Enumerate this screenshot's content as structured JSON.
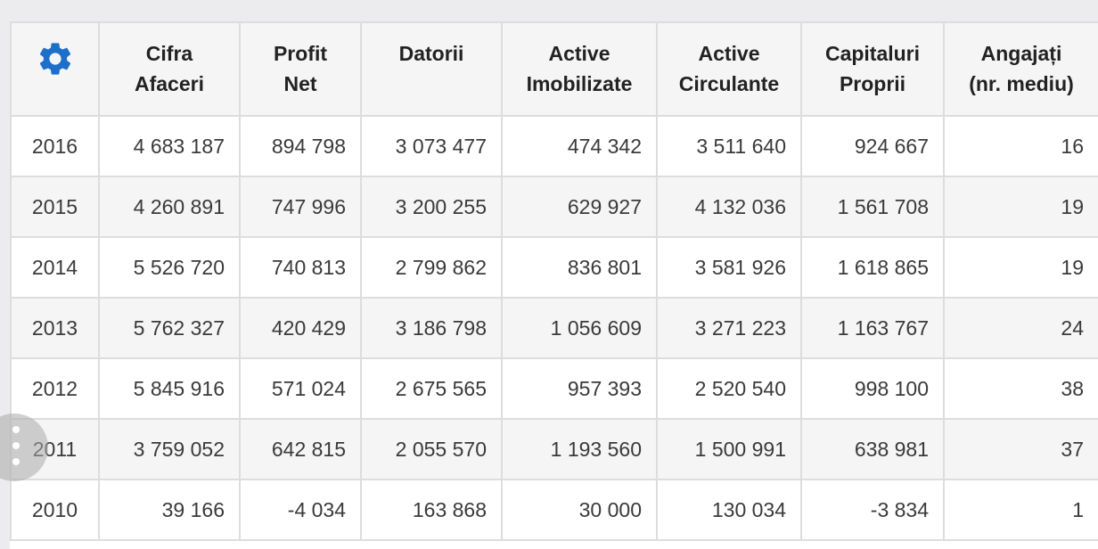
{
  "table": {
    "settings_icon_color": "#1e6fc9",
    "headers": [
      {
        "line1": "",
        "line2": ""
      },
      {
        "line1": "Cifra",
        "line2": "Afaceri"
      },
      {
        "line1": "Profit",
        "line2": "Net"
      },
      {
        "line1": "Datorii",
        "line2": ""
      },
      {
        "line1": "Active",
        "line2": "Imobilizate"
      },
      {
        "line1": "Active",
        "line2": "Circulante"
      },
      {
        "line1": "Capitaluri",
        "line2": "Proprii"
      },
      {
        "line1": "Angajați",
        "line2": "(nr. mediu)"
      }
    ],
    "rows": [
      [
        "2016",
        "4 683 187",
        "894 798",
        "3 073 477",
        "474 342",
        "3 511 640",
        "924 667",
        "16"
      ],
      [
        "2015",
        "4 260 891",
        "747 996",
        "3 200 255",
        "629 927",
        "4 132 036",
        "1 561 708",
        "19"
      ],
      [
        "2014",
        "5 526 720",
        "740 813",
        "2 799 862",
        "836 801",
        "3 581 926",
        "1 618 865",
        "19"
      ],
      [
        "2013",
        "5 762 327",
        "420 429",
        "3 186 798",
        "1 056 609",
        "3 271 223",
        "1 163 767",
        "24"
      ],
      [
        "2012",
        "5 845 916",
        "571 024",
        "2 675 565",
        "957 393",
        "2 520 540",
        "998 100",
        "38"
      ],
      [
        "2011",
        "3 759 052",
        "642 815",
        "2 055 570",
        "1 193 560",
        "1 500 991",
        "638 981",
        "37"
      ],
      [
        "2010",
        "39 166",
        "-4 034",
        "163 868",
        "30 000",
        "130 034",
        "-3 834",
        "1"
      ]
    ]
  }
}
